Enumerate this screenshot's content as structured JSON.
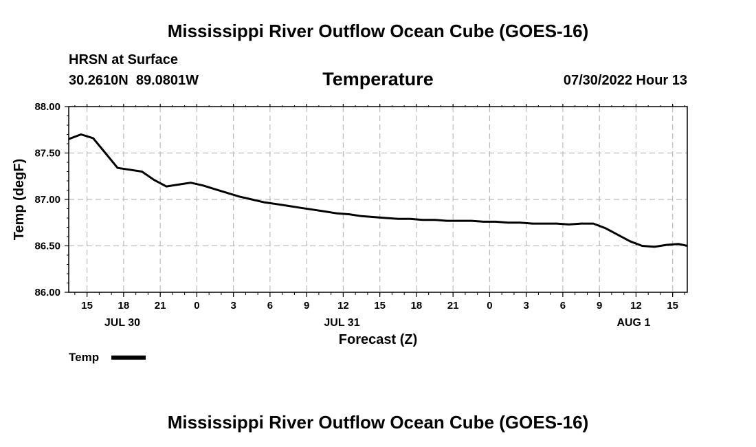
{
  "page": {
    "title": "Mississippi River Outflow Ocean Cube (GOES-16)",
    "footer_title": "Mississippi River Outflow Ocean Cube (GOES-16)",
    "station_name": "HRSN at Surface",
    "coords": "30.2610N  89.0801W",
    "variable": "Temperature",
    "valid_time": "07/30/2022 Hour 13"
  },
  "chart_data": {
    "type": "line",
    "title": "Temperature",
    "xlabel": "Forecast (Z)",
    "ylabel": "Temp (degF)",
    "xlim": [
      13.5,
      64.2
    ],
    "ylim": [
      86.0,
      88.0
    ],
    "yticks": [
      86.0,
      86.5,
      87.0,
      87.5,
      88.0
    ],
    "ytick_labels": [
      "86.00",
      "86.50",
      "87.00",
      "87.50",
      "88.00"
    ],
    "xticks": [
      15,
      18,
      21,
      24,
      27,
      30,
      33,
      36,
      39,
      42,
      45,
      48,
      51,
      54,
      57,
      60,
      63
    ],
    "xtick_labels": [
      "15",
      "18",
      "21",
      "0",
      "3",
      "6",
      "9",
      "12",
      "15",
      "18",
      "21",
      "0",
      "3",
      "6",
      "9",
      "12",
      "15"
    ],
    "date_labels": [
      {
        "x": 18,
        "label": "JUL 30"
      },
      {
        "x": 36,
        "label": "JUL 31"
      },
      {
        "x": 60,
        "label": "AUG 1"
      }
    ],
    "grid": true,
    "legend": "bottom-left",
    "series": [
      {
        "name": "Temp",
        "color": "#000000",
        "x": [
          13.5,
          14.5,
          15.5,
          16.5,
          17.5,
          18.5,
          19.5,
          20.5,
          21.5,
          22.5,
          23.5,
          24.5,
          25.5,
          26.5,
          27.5,
          28.5,
          29.5,
          30.5,
          31.5,
          32.5,
          33.5,
          34.5,
          35.5,
          36.5,
          37.5,
          38.5,
          39.5,
          40.5,
          41.5,
          42.5,
          43.5,
          44.5,
          45.5,
          46.5,
          47.5,
          48.5,
          49.5,
          50.5,
          51.5,
          52.5,
          53.5,
          54.5,
          55.5,
          56.5,
          57.5,
          58.5,
          59.5,
          60.5,
          61.5,
          62.5,
          63.5,
          64.2
        ],
        "values": [
          87.65,
          87.7,
          87.66,
          87.5,
          87.34,
          87.32,
          87.3,
          87.21,
          87.14,
          87.16,
          87.18,
          87.15,
          87.11,
          87.07,
          87.03,
          87.0,
          86.97,
          86.95,
          86.93,
          86.91,
          86.89,
          86.87,
          86.85,
          86.84,
          86.82,
          86.81,
          86.8,
          86.79,
          86.79,
          86.78,
          86.78,
          86.77,
          86.77,
          86.77,
          86.76,
          86.76,
          86.75,
          86.75,
          86.74,
          86.74,
          86.74,
          86.73,
          86.74,
          86.74,
          86.69,
          86.62,
          86.55,
          86.5,
          86.49,
          86.51,
          86.52,
          86.5
        ]
      }
    ]
  }
}
